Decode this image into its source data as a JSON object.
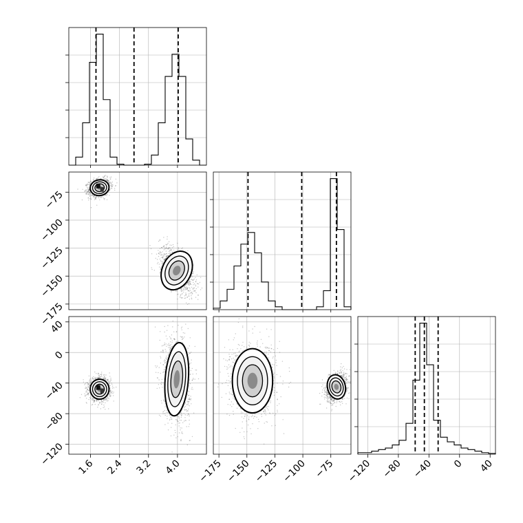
{
  "chart_data": {
    "type": "corner",
    "grid": true,
    "colors": {
      "ink": "#000000",
      "grid": "#b0b0b0",
      "scatter": "#555555"
    },
    "parameters": [
      {
        "lim": [
          1.0,
          4.8
        ],
        "ticks": [
          1.6,
          2.4,
          3.2,
          4.0
        ],
        "tick_labels": [
          "1.6",
          "2.4",
          "3.2",
          "4.0"
        ]
      },
      {
        "lim": [
          -180,
          -57
        ],
        "ticks": [
          -175,
          -150,
          -125,
          -100,
          -75
        ],
        "tick_labels": [
          "−175",
          "−150",
          "−125",
          "−100",
          "−75"
        ]
      },
      {
        "lim": [
          -133,
          47
        ],
        "ticks": [
          -120,
          -80,
          -40,
          0,
          40
        ],
        "tick_labels": [
          "−120",
          "−80",
          "−40",
          "0",
          "40"
        ]
      }
    ],
    "quantiles": [
      [
        1.75,
        2.8,
        4.02
      ],
      [
        -149,
        -101,
        -70
      ],
      [
        -58,
        -46,
        -28
      ]
    ],
    "histograms": [
      {
        "edges": [
          1.0,
          1.19,
          1.38,
          1.57,
          1.76,
          1.95,
          2.14,
          2.33,
          2.52,
          2.71,
          2.9,
          3.09,
          3.28,
          3.47,
          3.66,
          3.85,
          4.04,
          4.23,
          4.42,
          4.61,
          4.8
        ],
        "counts": [
          0,
          0.08,
          0.42,
          1.02,
          1.3,
          0.65,
          0.08,
          0.01,
          0,
          0,
          0,
          0.01,
          0.1,
          0.42,
          0.88,
          1.1,
          0.88,
          0.26,
          0.05,
          0
        ]
      },
      {
        "edges": [
          -180,
          -173.85,
          -167.7,
          -161.55,
          -155.4,
          -149.25,
          -143.1,
          -136.95,
          -130.8,
          -124.65,
          -118.5,
          -112.35,
          -106.2,
          -100.05,
          -93.9,
          -87.75,
          -81.6,
          -75.45,
          -69.3,
          -63.15,
          -57
        ],
        "counts": [
          0.01,
          0.06,
          0.14,
          0.3,
          0.45,
          0.53,
          0.39,
          0.19,
          0.06,
          0.02,
          0,
          0,
          0,
          0,
          0,
          0.02,
          0.13,
          0.9,
          0.55,
          0.02
        ]
      },
      {
        "edges": [
          -133,
          -124,
          -115,
          -106,
          -97,
          -88,
          -79,
          -70,
          -61,
          -52,
          -43,
          -34,
          -25,
          -16,
          -7,
          2,
          11,
          20,
          29,
          38,
          47
        ],
        "counts": [
          0.01,
          0.01,
          0.02,
          0.03,
          0.04,
          0.06,
          0.09,
          0.2,
          0.48,
          0.85,
          0.58,
          0.22,
          0.11,
          0.08,
          0.06,
          0.04,
          0.03,
          0.02,
          0.01,
          0.005
        ]
      }
    ],
    "clusters": [
      {
        "pair": [
          0,
          1
        ],
        "mean": [
          1.85,
          -71
        ],
        "sd": [
          0.13,
          3.5
        ],
        "rho": 0.2,
        "n": 1300
      },
      {
        "pair": [
          0,
          1
        ],
        "mean": [
          3.98,
          -145
        ],
        "sd": [
          0.2,
          9.0
        ],
        "rho": -0.55,
        "n": 1300
      },
      {
        "pair": [
          0,
          2
        ],
        "mean": [
          1.85,
          -48
        ],
        "sd": [
          0.13,
          6.5
        ],
        "rho": 0.0,
        "n": 1300
      },
      {
        "pair": [
          0,
          2
        ],
        "mean": [
          3.98,
          -35
        ],
        "sd": [
          0.16,
          24.0
        ],
        "rho": -0.1,
        "n": 1400
      },
      {
        "pair": [
          1,
          2
        ],
        "mean": [
          -145,
          -37
        ],
        "sd": [
          9.0,
          21.0
        ],
        "rho": 0.0,
        "n": 1400
      },
      {
        "pair": [
          1,
          2
        ],
        "mean": [
          -70,
          -45
        ],
        "sd": [
          4.0,
          8.0
        ],
        "rho": 0.3,
        "n": 1300
      }
    ]
  }
}
